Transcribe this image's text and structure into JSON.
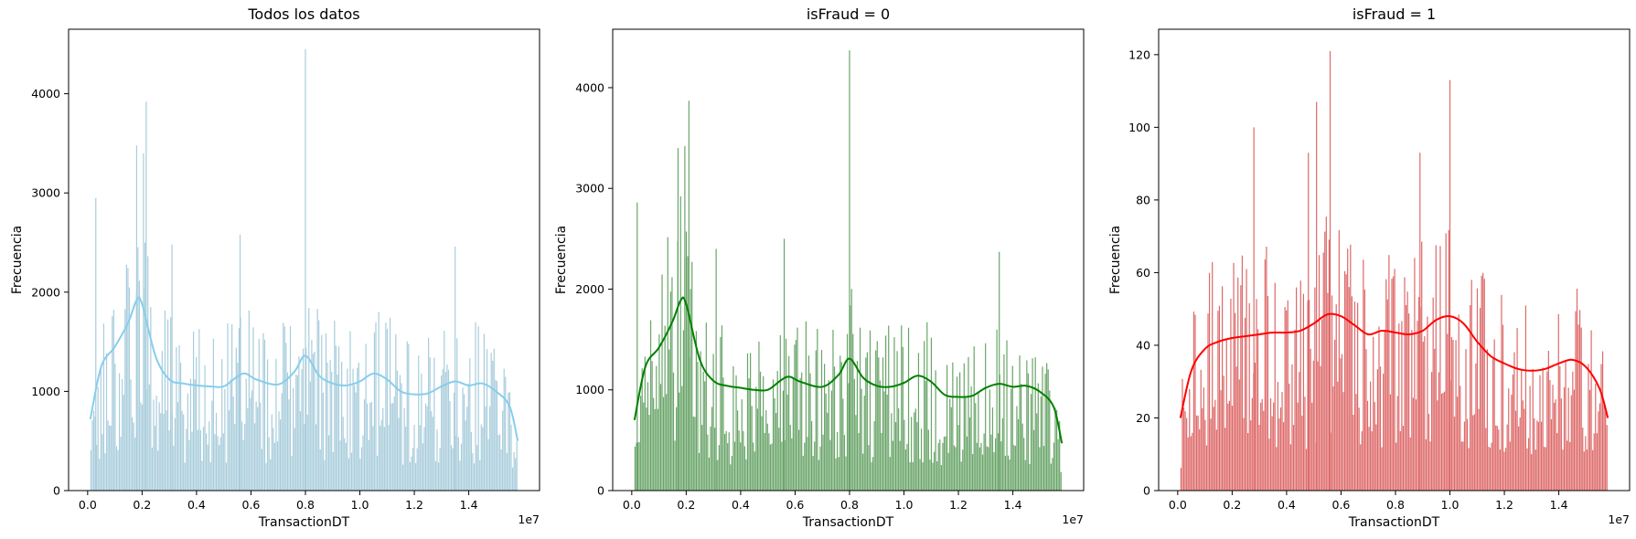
{
  "chart_data": [
    {
      "type": "histogram",
      "title": "Todos los datos",
      "xlabel": "TransactionDT",
      "ylabel": "Frecuencia",
      "x_offset_label": "1e7",
      "xlim": [
        -0.7,
        16.6
      ],
      "ylim": [
        0,
        4650
      ],
      "x_ticks": [
        0.0,
        0.2,
        0.4,
        0.6,
        0.8,
        1.0,
        1.2,
        1.4
      ],
      "x_tick_labels": [
        "0.0",
        "0.2",
        "0.4",
        "0.6",
        "0.8",
        "1.0",
        "1.2",
        "1.4"
      ],
      "y_ticks": [
        0,
        1000,
        2000,
        3000,
        4000
      ],
      "y_tick_labels": [
        "0",
        "1000",
        "2000",
        "3000",
        "4000"
      ],
      "x_units": "1e6 TransactionDT",
      "bar_color": "#a9cddc",
      "kde_color": "#87ceeb",
      "grid": false,
      "legend": "none",
      "kde": {
        "x": [
          0.1,
          0.5,
          1.0,
          1.5,
          1.8,
          2.0,
          2.5,
          3.0,
          3.5,
          4.0,
          4.5,
          5.0,
          5.5,
          5.8,
          6.2,
          7.0,
          7.6,
          8.0,
          8.5,
          9.0,
          9.5,
          10.0,
          10.5,
          11.0,
          11.5,
          12.0,
          12.5,
          13.0,
          13.5,
          14.0,
          14.5,
          15.0,
          15.5,
          15.8
        ],
        "y": [
          720,
          1250,
          1450,
          1700,
          1920,
          1880,
          1350,
          1120,
          1080,
          1060,
          1050,
          1050,
          1150,
          1180,
          1120,
          1070,
          1200,
          1360,
          1160,
          1080,
          1060,
          1100,
          1180,
          1120,
          1000,
          970,
          980,
          1050,
          1100,
          1060,
          1080,
          1000,
          850,
          500
        ]
      },
      "spikes": [
        {
          "x": 0.3,
          "y": 2950
        },
        {
          "x": 1.8,
          "y": 3480
        },
        {
          "x": 2.05,
          "y": 3400
        },
        {
          "x": 2.15,
          "y": 3920
        },
        {
          "x": 3.1,
          "y": 2480
        },
        {
          "x": 5.6,
          "y": 2580
        },
        {
          "x": 8.0,
          "y": 4450
        },
        {
          "x": 13.5,
          "y": 2460
        }
      ]
    },
    {
      "type": "histogram",
      "title": "isFraud = 0",
      "xlabel": "TransactionDT",
      "ylabel": "Frecuencia",
      "x_offset_label": "1e7",
      "xlim": [
        -0.7,
        16.6
      ],
      "ylim": [
        0,
        4580
      ],
      "x_ticks": [
        0.0,
        0.2,
        0.4,
        0.6,
        0.8,
        1.0,
        1.2,
        1.4
      ],
      "x_tick_labels": [
        "0.0",
        "0.2",
        "0.4",
        "0.6",
        "0.8",
        "1.0",
        "1.2",
        "1.4"
      ],
      "y_ticks": [
        0,
        1000,
        2000,
        3000,
        4000
      ],
      "y_tick_labels": [
        "0",
        "1000",
        "2000",
        "3000",
        "4000"
      ],
      "x_units": "1e6 TransactionDT",
      "bar_color": "#6aa56a",
      "kde_color": "#008000",
      "grid": false,
      "legend": "none",
      "kde": {
        "x": [
          0.1,
          0.5,
          1.0,
          1.5,
          1.8,
          2.0,
          2.5,
          3.0,
          3.5,
          4.0,
          4.5,
          5.0,
          5.5,
          5.8,
          6.2,
          7.0,
          7.6,
          8.0,
          8.5,
          9.0,
          9.5,
          10.0,
          10.5,
          11.0,
          11.5,
          12.0,
          12.5,
          13.0,
          13.5,
          14.0,
          14.5,
          15.0,
          15.5,
          15.8
        ],
        "y": [
          700,
          1230,
          1420,
          1680,
          1890,
          1850,
          1300,
          1090,
          1040,
          1020,
          1000,
          1000,
          1100,
          1130,
          1080,
          1030,
          1150,
          1310,
          1120,
          1040,
          1030,
          1070,
          1140,
          1080,
          950,
          930,
          940,
          1020,
          1060,
          1030,
          1040,
          980,
          830,
          470
        ]
      },
      "spikes": [
        {
          "x": 0.2,
          "y": 2860
        },
        {
          "x": 1.7,
          "y": 3400
        },
        {
          "x": 1.95,
          "y": 3420
        },
        {
          "x": 2.1,
          "y": 3870
        },
        {
          "x": 8.0,
          "y": 4370
        },
        {
          "x": 3.1,
          "y": 2400
        },
        {
          "x": 5.6,
          "y": 2500
        },
        {
          "x": 13.5,
          "y": 2370
        }
      ]
    },
    {
      "type": "histogram",
      "title": "isFraud = 1",
      "xlabel": "TransactionDT",
      "ylabel": "Frecuencia",
      "x_offset_label": "1e7",
      "xlim": [
        -0.7,
        16.6
      ],
      "ylim": [
        0,
        127
      ],
      "x_ticks": [
        0.0,
        0.2,
        0.4,
        0.6,
        0.8,
        1.0,
        1.2,
        1.4
      ],
      "x_tick_labels": [
        "0.0",
        "0.2",
        "0.4",
        "0.6",
        "0.8",
        "1.0",
        "1.2",
        "1.4"
      ],
      "y_ticks": [
        0,
        20,
        40,
        60,
        80,
        100,
        120
      ],
      "y_tick_labels": [
        "0",
        "20",
        "40",
        "60",
        "80",
        "100",
        "120"
      ],
      "x_units": "1e6 TransactionDT",
      "bar_color": "#de6a6a",
      "kde_color": "#ff0000",
      "grid": false,
      "legend": "none",
      "kde": {
        "x": [
          0.1,
          0.5,
          1.0,
          1.5,
          2.0,
          2.5,
          3.0,
          3.5,
          4.0,
          4.5,
          5.0,
          5.5,
          6.0,
          6.5,
          7.0,
          7.5,
          8.0,
          8.5,
          9.0,
          9.5,
          10.0,
          10.5,
          11.0,
          11.5,
          12.0,
          12.5,
          13.0,
          13.5,
          14.0,
          14.5,
          15.0,
          15.5,
          15.8
        ],
        "y": [
          20,
          33,
          39,
          41,
          42,
          42.5,
          43,
          43.5,
          43.5,
          44,
          46,
          48.5,
          48,
          45.5,
          43,
          44,
          43.5,
          43,
          44,
          47,
          48,
          46,
          41,
          37,
          35,
          33.5,
          33,
          33.5,
          35,
          36,
          34,
          28,
          20
        ]
      },
      "spikes": [
        {
          "x": 5.6,
          "y": 121
        },
        {
          "x": 10.0,
          "y": 113
        },
        {
          "x": 5.1,
          "y": 107
        },
        {
          "x": 2.8,
          "y": 100
        },
        {
          "x": 4.8,
          "y": 93
        },
        {
          "x": 8.9,
          "y": 93
        }
      ]
    }
  ]
}
